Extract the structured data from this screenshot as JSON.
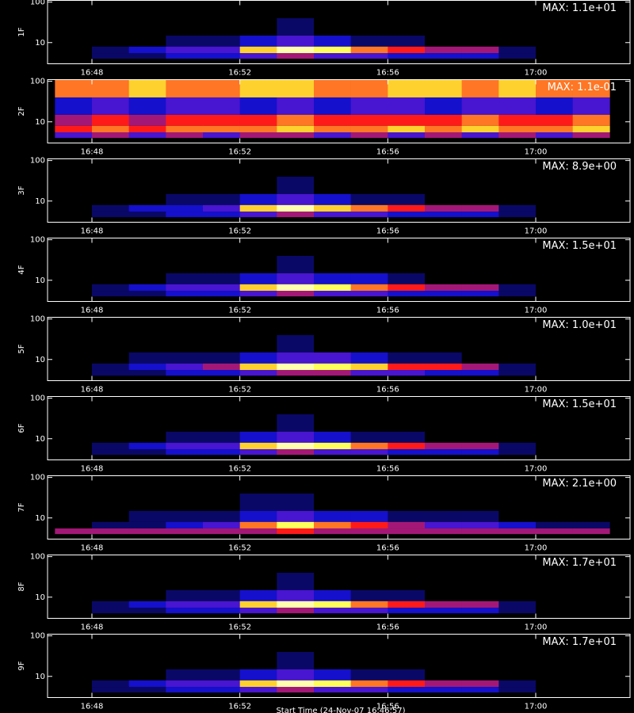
{
  "chart_data": {
    "type": "heatmap",
    "xlabel": "Start Time (24-Nov-07 16:46:57)",
    "x_edges": [
      47,
      48,
      49,
      50,
      51,
      52,
      53,
      54,
      55,
      56,
      57,
      58,
      59,
      60,
      61,
      62
    ],
    "y_edges": [
      4,
      5.5,
      8,
      15,
      40,
      110
    ],
    "xlim": [
      46.8,
      62.55
    ],
    "ylim": [
      3,
      110
    ],
    "log_y": true,
    "xticks": [
      {
        "value": 48,
        "label": "16:48"
      },
      {
        "value": 52,
        "label": "16:52"
      },
      {
        "value": 56,
        "label": "16:56"
      },
      {
        "value": 60,
        "label": "17:00"
      }
    ],
    "yticks": [
      10,
      100
    ],
    "zlim": [
      0,
      10
    ],
    "colormap": [
      "#000000",
      "#1a14ff",
      "#ff1a1a",
      "#ffff33",
      "#ffffff"
    ],
    "axis_color": "#ffffff",
    "panels": [
      {
        "ylabel": "1F",
        "max_label": "MAX: 1.1e+01",
        "values": [
          [
            0,
            1,
            1,
            2,
            2,
            3,
            4,
            3,
            3,
            2,
            2,
            2,
            1,
            0,
            0
          ],
          [
            0,
            1,
            2,
            3,
            3,
            7,
            9,
            8,
            6,
            5,
            4,
            4,
            1,
            0,
            0
          ],
          [
            0,
            0,
            0,
            1,
            1,
            2,
            3,
            2,
            1,
            1,
            0,
            0,
            0,
            0,
            0
          ],
          [
            0,
            0,
            0,
            0,
            0,
            0,
            1,
            0,
            0,
            0,
            0,
            0,
            0,
            0,
            0
          ],
          [
            0,
            0,
            0,
            0,
            0,
            0,
            0,
            0,
            0,
            0,
            0,
            0,
            0,
            0,
            0
          ]
        ]
      },
      {
        "ylabel": "2F",
        "max_label": "MAX: 1.1e-01",
        "values": [
          [
            3,
            4,
            3,
            4,
            3,
            4,
            4,
            3,
            4,
            3,
            4,
            3,
            4,
            3,
            4
          ],
          [
            5,
            6,
            5,
            6,
            6,
            6,
            7,
            6,
            6,
            7,
            6,
            7,
            6,
            6,
            7
          ],
          [
            4,
            5,
            4,
            5,
            5,
            5,
            6,
            5,
            5,
            5,
            5,
            6,
            5,
            5,
            6
          ],
          [
            2,
            3,
            2,
            3,
            3,
            2,
            3,
            2,
            3,
            3,
            2,
            3,
            3,
            2,
            3
          ],
          [
            6,
            6,
            7,
            6,
            6,
            7,
            7,
            6,
            6,
            7,
            7,
            6,
            7,
            6,
            6
          ]
        ]
      },
      {
        "ylabel": "3F",
        "max_label": "MAX: 8.9e+00",
        "values": [
          [
            0,
            1,
            1,
            2,
            2,
            3,
            4,
            3,
            3,
            2,
            2,
            2,
            1,
            0,
            0
          ],
          [
            0,
            1,
            2,
            2,
            3,
            7,
            9,
            7,
            6,
            5,
            4,
            4,
            1,
            0,
            0
          ],
          [
            0,
            0,
            0,
            1,
            1,
            2,
            3,
            2,
            1,
            1,
            0,
            0,
            0,
            0,
            0
          ],
          [
            0,
            0,
            0,
            0,
            0,
            0,
            1,
            0,
            0,
            0,
            0,
            0,
            0,
            0,
            0
          ],
          [
            0,
            0,
            0,
            0,
            0,
            0,
            0,
            0,
            0,
            0,
            0,
            0,
            0,
            0,
            0
          ]
        ]
      },
      {
        "ylabel": "4F",
        "max_label": "MAX: 1.5e+01",
        "values": [
          [
            0,
            1,
            1,
            2,
            2,
            3,
            4,
            3,
            3,
            2,
            2,
            2,
            1,
            0,
            0
          ],
          [
            0,
            1,
            2,
            3,
            3,
            7,
            9,
            8,
            6,
            5,
            4,
            4,
            1,
            0,
            0
          ],
          [
            0,
            0,
            0,
            1,
            1,
            2,
            3,
            2,
            2,
            1,
            0,
            0,
            0,
            0,
            0
          ],
          [
            0,
            0,
            0,
            0,
            0,
            0,
            1,
            0,
            0,
            0,
            0,
            0,
            0,
            0,
            0
          ],
          [
            0,
            0,
            0,
            0,
            0,
            0,
            0,
            0,
            0,
            0,
            0,
            0,
            0,
            0,
            0
          ]
        ]
      },
      {
        "ylabel": "5F",
        "max_label": "MAX: 1.0e+01",
        "values": [
          [
            0,
            1,
            1,
            2,
            2,
            3,
            4,
            4,
            3,
            3,
            2,
            2,
            1,
            0,
            0
          ],
          [
            0,
            1,
            2,
            3,
            4,
            7,
            9,
            8,
            7,
            5,
            5,
            4,
            1,
            0,
            0
          ],
          [
            0,
            0,
            1,
            1,
            1,
            2,
            3,
            3,
            2,
            1,
            1,
            0,
            0,
            0,
            0
          ],
          [
            0,
            0,
            0,
            0,
            0,
            0,
            1,
            0,
            0,
            0,
            0,
            0,
            0,
            0,
            0
          ],
          [
            0,
            0,
            0,
            0,
            0,
            0,
            0,
            0,
            0,
            0,
            0,
            0,
            0,
            0,
            0
          ]
        ]
      },
      {
        "ylabel": "6F",
        "max_label": "MAX: 1.5e+01",
        "values": [
          [
            0,
            1,
            1,
            2,
            2,
            3,
            4,
            3,
            3,
            2,
            2,
            2,
            1,
            0,
            0
          ],
          [
            0,
            1,
            2,
            3,
            3,
            7,
            9,
            8,
            6,
            5,
            4,
            4,
            1,
            0,
            0
          ],
          [
            0,
            0,
            0,
            1,
            1,
            2,
            3,
            2,
            1,
            1,
            0,
            0,
            0,
            0,
            0
          ],
          [
            0,
            0,
            0,
            0,
            0,
            0,
            1,
            0,
            0,
            0,
            0,
            0,
            0,
            0,
            0
          ],
          [
            0,
            0,
            0,
            0,
            0,
            0,
            0,
            0,
            0,
            0,
            0,
            0,
            0,
            0,
            0
          ]
        ]
      },
      {
        "ylabel": "7F",
        "max_label": "MAX: 2.1e+00",
        "values": [
          [
            4,
            4,
            4,
            4,
            4,
            4,
            5,
            4,
            4,
            4,
            4,
            4,
            4,
            4,
            4
          ],
          [
            0,
            1,
            1,
            2,
            3,
            6,
            8,
            6,
            5,
            4,
            3,
            3,
            2,
            1,
            1
          ],
          [
            0,
            0,
            1,
            1,
            1,
            2,
            3,
            2,
            2,
            1,
            1,
            1,
            0,
            0,
            0
          ],
          [
            0,
            0,
            0,
            0,
            0,
            1,
            1,
            0,
            0,
            0,
            0,
            0,
            0,
            0,
            0
          ],
          [
            0,
            0,
            0,
            0,
            0,
            0,
            0,
            0,
            0,
            0,
            0,
            0,
            0,
            0,
            0
          ]
        ]
      },
      {
        "ylabel": "8F",
        "max_label": "MAX: 1.7e+01",
        "values": [
          [
            0,
            1,
            1,
            2,
            2,
            3,
            4,
            3,
            3,
            2,
            2,
            2,
            1,
            0,
            0
          ],
          [
            0,
            1,
            2,
            3,
            3,
            7,
            9,
            8,
            6,
            5,
            4,
            4,
            1,
            0,
            0
          ],
          [
            0,
            0,
            0,
            1,
            1,
            2,
            3,
            2,
            1,
            1,
            0,
            0,
            0,
            0,
            0
          ],
          [
            0,
            0,
            0,
            0,
            0,
            0,
            1,
            0,
            0,
            0,
            0,
            0,
            0,
            0,
            0
          ],
          [
            0,
            0,
            0,
            0,
            0,
            0,
            0,
            0,
            0,
            0,
            0,
            0,
            0,
            0,
            0
          ]
        ]
      },
      {
        "ylabel": "9F",
        "max_label": "MAX: 1.7e+01",
        "values": [
          [
            0,
            1,
            1,
            2,
            2,
            3,
            4,
            3,
            3,
            2,
            2,
            2,
            1,
            0,
            0
          ],
          [
            0,
            1,
            2,
            3,
            3,
            7,
            9,
            8,
            6,
            5,
            4,
            4,
            1,
            0,
            0
          ],
          [
            0,
            0,
            0,
            1,
            1,
            2,
            3,
            2,
            1,
            1,
            0,
            0,
            0,
            0,
            0
          ],
          [
            0,
            0,
            0,
            0,
            0,
            0,
            1,
            0,
            0,
            0,
            0,
            0,
            0,
            0,
            0
          ],
          [
            0,
            0,
            0,
            0,
            0,
            0,
            0,
            0,
            0,
            0,
            0,
            0,
            0,
            0,
            0
          ]
        ]
      }
    ]
  }
}
